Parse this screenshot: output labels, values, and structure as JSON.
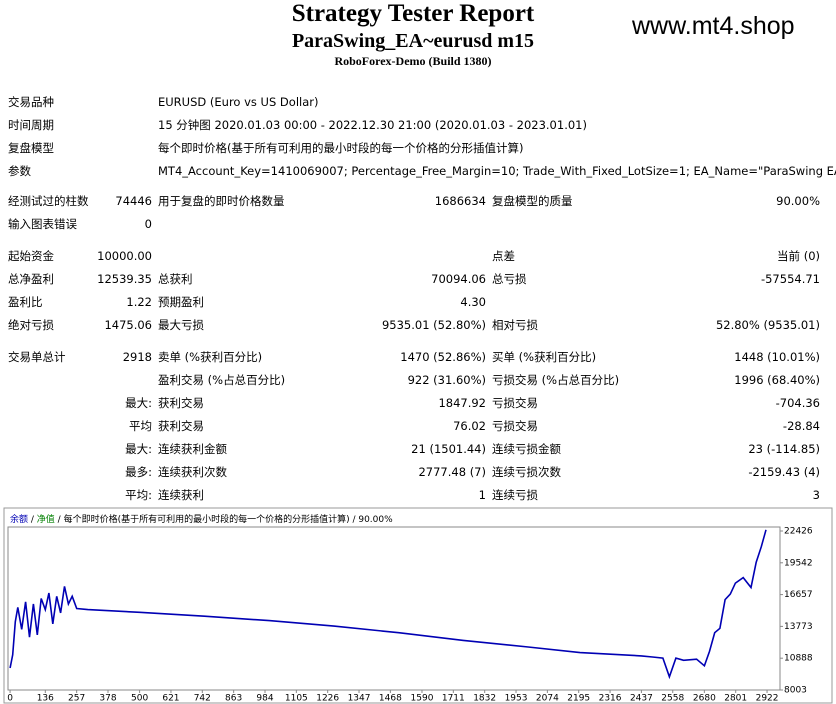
{
  "header": {
    "title": "Strategy Tester Report",
    "subtitle": "ParaSwing_EA~eurusd m15",
    "build": "RoboForex-Demo (Build 1380)",
    "watermark": "www.mt4.shop"
  },
  "info": [
    {
      "label": "交易品种",
      "value": "EURUSD (Euro vs US Dollar)"
    },
    {
      "label": "时间周期",
      "value": "15 分钟图 2020.01.03 00:00 - 2022.12.30 21:00 (2020.01.03 - 2023.01.01)"
    },
    {
      "label": "复盘模型",
      "value": "每个即时价格(基于所有可利用的最小时段的每一个价格的分形插值计算)"
    },
    {
      "label": "参数",
      "value": "MT4_Account_Key=1410069007; Percentage_Free_Margin=10; Trade_With_Fixed_LotSize=1; EA_Name=\"ParaSwing EA\";"
    }
  ],
  "table": {
    "rows": [
      [
        "经测试过的柱数",
        "74446",
        "用于复盘的即时价格数量",
        "1686634",
        "复盘模型的质量",
        "90.00%"
      ],
      [
        "输入图表错误",
        "0",
        null,
        null,
        null,
        null
      ],
      [
        "起始资金",
        "10000.00",
        null,
        null,
        "点差",
        "当前 (0)"
      ],
      [
        "总净盈利",
        "12539.35",
        "总获利",
        "70094.06",
        "总亏损",
        "-57554.71"
      ],
      [
        "盈利比",
        "1.22",
        "预期盈利",
        "4.30",
        null,
        null
      ],
      [
        "绝对亏损",
        "1475.06",
        "最大亏损",
        "9535.01 (52.80%)",
        "相对亏损",
        "52.80% (9535.01)"
      ],
      [
        "交易单总计",
        "2918",
        "卖单 (%获利百分比)",
        "1470 (52.86%)",
        "买单 (%获利百分比)",
        "1448 (10.01%)"
      ],
      [
        null,
        null,
        "盈利交易 (%占总百分比)",
        "922 (31.60%)",
        "亏损交易 (%占总百分比)",
        "1996 (68.40%)"
      ],
      [
        null,
        "最大:",
        "获利交易",
        "1847.92",
        "亏损交易",
        "-704.36"
      ],
      [
        null,
        "平均",
        "获利交易",
        "76.02",
        "亏损交易",
        "-28.84"
      ],
      [
        null,
        "最大:",
        "连续获利金额",
        "21 (1501.44)",
        "连续亏损金额",
        "23 (-114.85)"
      ],
      [
        null,
        "最多:",
        "连续获利次数",
        "2777.48 (7)",
        "连续亏损次数",
        "-2159.43 (4)"
      ],
      [
        null,
        "平均:",
        "连续获利",
        "1",
        "连续亏损",
        "3"
      ]
    ]
  },
  "chart_data": {
    "type": "line",
    "legend_text": [
      "净值",
      "每个即时价格(基于所有可利用的最小时段的每一个价格的分形插值计算)",
      "90.00%"
    ],
    "legend_colors": [
      "#008000",
      "#000000",
      "#000000"
    ],
    "x": [
      0,
      10,
      20,
      30,
      45,
      60,
      75,
      90,
      105,
      120,
      136,
      150,
      165,
      180,
      195,
      210,
      225,
      240,
      257,
      300,
      500,
      750,
      1000,
      1250,
      1500,
      1750,
      2000,
      2200,
      2437,
      2480,
      2520,
      2545,
      2570,
      2600,
      2650,
      2680,
      2700,
      2720,
      2740,
      2760,
      2780,
      2800,
      2830,
      2860,
      2880,
      2900,
      2918
    ],
    "series": [
      {
        "name": "余额",
        "color": "#0000b4",
        "values": [
          10000,
          11200,
          14200,
          15500,
          13500,
          16000,
          12800,
          15800,
          13000,
          16300,
          15300,
          16800,
          14000,
          16500,
          15000,
          17400,
          15800,
          16500,
          15400,
          15300,
          15050,
          14700,
          14300,
          13800,
          13200,
          12500,
          11900,
          11400,
          11100,
          11000,
          10900,
          9200,
          10900,
          10700,
          10800,
          10200,
          11500,
          13200,
          13600,
          16200,
          16700,
          17700,
          18200,
          17300,
          19600,
          21000,
          22539
        ]
      }
    ],
    "xlim": [
      -8,
      2972
    ],
    "ylim": [
      8003,
      22789
    ],
    "xticks": [
      0,
      136,
      257,
      378,
      500,
      621,
      742,
      863,
      984,
      1105,
      1226,
      1347,
      1468,
      1590,
      1711,
      1832,
      1953,
      2074,
      2195,
      2316,
      2437,
      2558,
      2680,
      2801,
      2922
    ],
    "yticks": [
      8003,
      10888,
      13773,
      16657,
      19542,
      22426
    ]
  }
}
